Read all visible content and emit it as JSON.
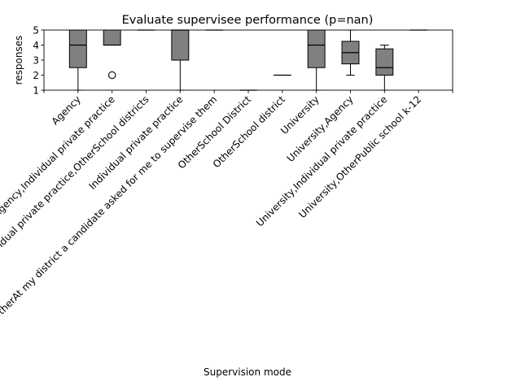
{
  "chart_data": {
    "type": "box",
    "title": "Evaluate supervisee performance (p=nan)",
    "xlabel": "Supervision mode",
    "ylabel": "responses",
    "ylim": [
      1,
      5
    ],
    "yticks": [
      1,
      2,
      3,
      4,
      5
    ],
    "grid": false,
    "colors": {
      "box_fill": "#808080",
      "stroke": "#000000",
      "background": "#ffffff"
    },
    "categories": [
      "Agency",
      "Agency,Individual private practice",
      "Agency,Individual private practice,OtherSchool districts",
      "Individual private practice",
      "OtherAt my district a candidate asked for me to supervise them",
      "OtherSchool District",
      "OtherSchool district",
      "University",
      "University,Agency",
      "University,Individual private practice",
      "University,OtherPublic school k-12"
    ],
    "boxes": [
      {
        "category": "Agency",
        "whislo": 1,
        "q1": 2.5,
        "med": 4,
        "q3": 5,
        "whishi": 5,
        "fliers": []
      },
      {
        "category": "Agency,Individual private practice",
        "whislo": 4,
        "q1": 4,
        "med": 4,
        "q3": 5,
        "whishi": 5,
        "fliers": [
          2
        ]
      },
      {
        "category": "Agency,Individual private practice,OtherSchool districts",
        "whislo": 5,
        "q1": 5,
        "med": 5,
        "q3": 5,
        "whishi": 5,
        "fliers": []
      },
      {
        "category": "Individual private practice",
        "whislo": 1,
        "q1": 3,
        "med": 5,
        "q3": 5,
        "whishi": 5,
        "fliers": []
      },
      {
        "category": "OtherAt my district a candidate asked for me to supervise them",
        "whislo": 5,
        "q1": 5,
        "med": 5,
        "q3": 5,
        "whishi": 5,
        "fliers": []
      },
      {
        "category": "OtherSchool District",
        "whislo": 1,
        "q1": 1,
        "med": 1,
        "q3": 1,
        "whishi": 1,
        "fliers": []
      },
      {
        "category": "OtherSchool district",
        "whislo": 2,
        "q1": 2,
        "med": 2,
        "q3": 2,
        "whishi": 2,
        "fliers": []
      },
      {
        "category": "University",
        "whislo": 1,
        "q1": 2.5,
        "med": 4,
        "q3": 5,
        "whishi": 5,
        "fliers": []
      },
      {
        "category": "University,Agency",
        "whislo": 2,
        "q1": 2.75,
        "med": 3.5,
        "q3": 4.25,
        "whishi": 5,
        "fliers": []
      },
      {
        "category": "University,Individual private practice",
        "whislo": 1,
        "q1": 2,
        "med": 2.5,
        "q3": 3.75,
        "whishi": 4,
        "fliers": []
      },
      {
        "category": "University,OtherPublic school k-12",
        "whislo": 5,
        "q1": 5,
        "med": 5,
        "q3": 5,
        "whishi": 5,
        "fliers": []
      }
    ]
  }
}
